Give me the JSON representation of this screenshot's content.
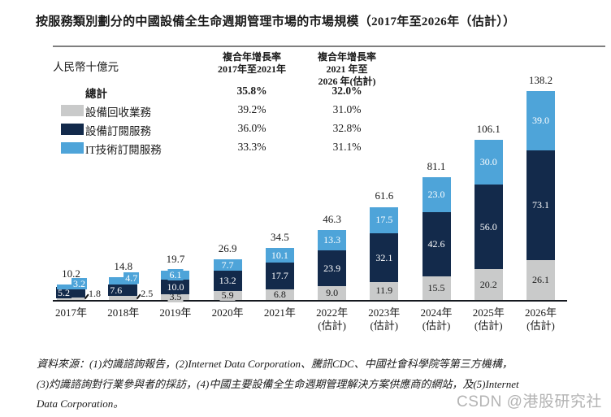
{
  "chart_data": {
    "type": "bar",
    "stacked": true,
    "title": "按服務類別劃分的中國設備全生命週期管理市場的市場規模（2017年至2026年（估計））",
    "unit": "人民幣十億元",
    "categories": [
      [
        "2017年"
      ],
      [
        "2018年"
      ],
      [
        "2019年"
      ],
      [
        "2020年"
      ],
      [
        "2021年"
      ],
      [
        "2022年",
        "(估計)"
      ],
      [
        "2023年",
        "(估計)"
      ],
      [
        "2024年",
        "(估計)"
      ],
      [
        "2025年",
        "(估計)"
      ],
      [
        "2026年",
        "(估計)"
      ]
    ],
    "series": [
      {
        "name": "設備回收業務",
        "color": "#c9caca",
        "label_color": "#1a1a1a",
        "values": [
          1.8,
          2.5,
          3.5,
          5.9,
          6.8,
          9.0,
          11.9,
          15.5,
          20.2,
          26.1
        ]
      },
      {
        "name": "設備訂閱服務",
        "color": "#132a4b",
        "label_color": "#ffffff",
        "values": [
          5.2,
          7.6,
          10.0,
          13.2,
          17.7,
          23.9,
          32.1,
          42.6,
          56.0,
          73.1
        ]
      },
      {
        "name": "IT技術訂閱服務",
        "color": "#4ea4d9",
        "label_color": "#ffffff",
        "values": [
          3.2,
          4.7,
          6.1,
          7.7,
          10.1,
          13.3,
          17.5,
          23.0,
          30.0,
          39.0
        ]
      }
    ],
    "totals": [
      10.2,
      14.8,
      19.7,
      26.9,
      34.5,
      46.3,
      61.6,
      81.1,
      106.1,
      138.2
    ],
    "ylim": [
      0,
      140
    ],
    "grid": false,
    "legend_position": "top-left",
    "outside_bottom_label_indices": [
      0,
      1
    ]
  },
  "cagr_table": {
    "col1_header": [
      "複合年增長率",
      "2017年至2021年"
    ],
    "col2_header": [
      "複合年增長率",
      "2021 年至",
      "2026 年(估計)"
    ],
    "rows": [
      {
        "label": "總計",
        "cagr1": "35.8%",
        "cagr2": "32.0%"
      },
      {
        "label": "設備回收業務",
        "cagr1": "39.2%",
        "cagr2": "31.0%"
      },
      {
        "label": "設備訂閱服務",
        "cagr1": "36.0%",
        "cagr2": "32.8%"
      },
      {
        "label": "IT技術訂閱服務",
        "cagr1": "33.3%",
        "cagr2": "31.1%"
      }
    ]
  },
  "source_note": {
    "lines": [
      "資料來源：(1)灼識諮詢報告，(2)Internet Data Corporation、騰訊CDC、中國社會科學院等第三方機構，",
      "(3)灼識諮詢對行業參與者的採訪，(4)中國主要設備全生命週期管理解決方案供應商的網站，及(5)Internet",
      "Data Corporation。"
    ]
  },
  "watermark": "CSDN @港股研究社"
}
